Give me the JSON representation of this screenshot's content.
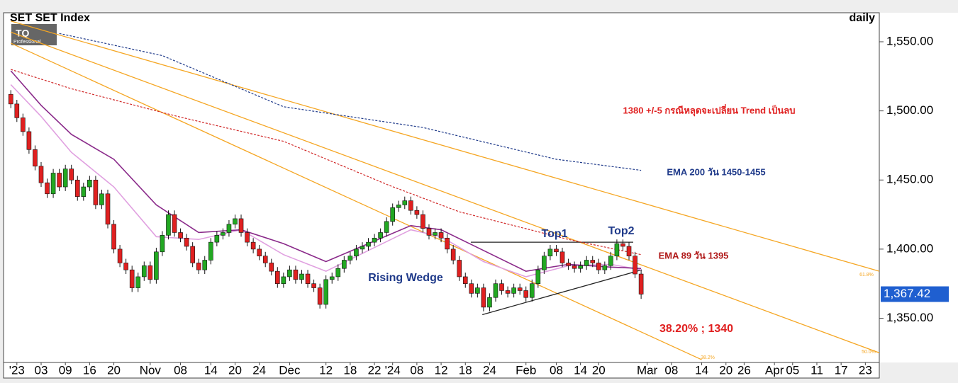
{
  "chart_data": {
    "type": "candlestick",
    "title": "SET  SET Index",
    "period": "daily",
    "logo": "TQ",
    "logo_sub": "Professional",
    "up_color": "#22a822",
    "down_color": "#e02020",
    "ohlc": [
      [
        1512,
        1515,
        1502,
        1505
      ],
      [
        1505,
        1508,
        1492,
        1495
      ],
      [
        1495,
        1498,
        1482,
        1485
      ],
      [
        1485,
        1488,
        1469,
        1472
      ],
      [
        1472,
        1475,
        1457,
        1460
      ],
      [
        1460,
        1463,
        1445,
        1448
      ],
      [
        1448,
        1451,
        1437,
        1440
      ],
      [
        1440,
        1458,
        1437,
        1455
      ],
      [
        1455,
        1458,
        1442,
        1445
      ],
      [
        1445,
        1461,
        1442,
        1458
      ],
      [
        1458,
        1461,
        1447,
        1450
      ],
      [
        1450,
        1453,
        1435,
        1438
      ],
      [
        1438,
        1448,
        1435,
        1445
      ],
      [
        1445,
        1453,
        1442,
        1450
      ],
      [
        1450,
        1453,
        1429,
        1432
      ],
      [
        1432,
        1443,
        1429,
        1440
      ],
      [
        1440,
        1443,
        1415,
        1418
      ],
      [
        1418,
        1421,
        1397,
        1400
      ],
      [
        1400,
        1403,
        1387,
        1390
      ],
      [
        1390,
        1393,
        1382,
        1385
      ],
      [
        1385,
        1388,
        1369,
        1372
      ],
      [
        1372,
        1383,
        1369,
        1380
      ],
      [
        1380,
        1391,
        1377,
        1388
      ],
      [
        1388,
        1391,
        1375,
        1378
      ],
      [
        1378,
        1401,
        1375,
        1398
      ],
      [
        1398,
        1413,
        1395,
        1410
      ],
      [
        1410,
        1428,
        1407,
        1425
      ],
      [
        1425,
        1428,
        1409,
        1412
      ],
      [
        1412,
        1415,
        1405,
        1408
      ],
      [
        1408,
        1411,
        1399,
        1402
      ],
      [
        1402,
        1405,
        1387,
        1390
      ],
      [
        1390,
        1393,
        1382,
        1385
      ],
      [
        1385,
        1395,
        1382,
        1392
      ],
      [
        1392,
        1408,
        1389,
        1405
      ],
      [
        1405,
        1413,
        1402,
        1410
      ],
      [
        1410,
        1415,
        1407,
        1412
      ],
      [
        1412,
        1421,
        1409,
        1418
      ],
      [
        1418,
        1425,
        1415,
        1422
      ],
      [
        1422,
        1425,
        1409,
        1412
      ],
      [
        1412,
        1415,
        1402,
        1405
      ],
      [
        1405,
        1408,
        1397,
        1400
      ],
      [
        1400,
        1403,
        1392,
        1395
      ],
      [
        1395,
        1398,
        1387,
        1390
      ],
      [
        1390,
        1393,
        1381,
        1384
      ],
      [
        1384,
        1387,
        1372,
        1375
      ],
      [
        1375,
        1383,
        1372,
        1380
      ],
      [
        1380,
        1388,
        1377,
        1385
      ],
      [
        1385,
        1388,
        1375,
        1378
      ],
      [
        1378,
        1385,
        1375,
        1382
      ],
      [
        1382,
        1385,
        1372,
        1375
      ],
      [
        1375,
        1378,
        1369,
        1372
      ],
      [
        1372,
        1375,
        1357,
        1360
      ],
      [
        1360,
        1381,
        1357,
        1378
      ],
      [
        1378,
        1383,
        1375,
        1380
      ],
      [
        1380,
        1389,
        1377,
        1386
      ],
      [
        1386,
        1395,
        1383,
        1392
      ],
      [
        1392,
        1398,
        1389,
        1395
      ],
      [
        1395,
        1403,
        1392,
        1400
      ],
      [
        1400,
        1405,
        1397,
        1402
      ],
      [
        1402,
        1408,
        1399,
        1405
      ],
      [
        1405,
        1411,
        1402,
        1408
      ],
      [
        1408,
        1415,
        1405,
        1412
      ],
      [
        1412,
        1423,
        1409,
        1420
      ],
      [
        1420,
        1433,
        1417,
        1430
      ],
      [
        1430,
        1435,
        1427,
        1432
      ],
      [
        1432,
        1438,
        1429,
        1435
      ],
      [
        1435,
        1438,
        1425,
        1428
      ],
      [
        1428,
        1431,
        1422,
        1425
      ],
      [
        1425,
        1428,
        1412,
        1415
      ],
      [
        1415,
        1418,
        1407,
        1410
      ],
      [
        1410,
        1415,
        1407,
        1412
      ],
      [
        1412,
        1415,
        1405,
        1408
      ],
      [
        1408,
        1411,
        1397,
        1400
      ],
      [
        1400,
        1403,
        1389,
        1392
      ],
      [
        1392,
        1395,
        1377,
        1380
      ],
      [
        1380,
        1383,
        1372,
        1375
      ],
      [
        1375,
        1378,
        1365,
        1368
      ],
      [
        1368,
        1375,
        1365,
        1372
      ],
      [
        1372,
        1375,
        1355,
        1358
      ],
      [
        1358,
        1368,
        1355,
        1365
      ],
      [
        1365,
        1378,
        1362,
        1375
      ],
      [
        1375,
        1378,
        1367,
        1370
      ],
      [
        1370,
        1373,
        1365,
        1368
      ],
      [
        1368,
        1375,
        1365,
        1372
      ],
      [
        1372,
        1375,
        1367,
        1370
      ],
      [
        1370,
        1373,
        1362,
        1365
      ],
      [
        1365,
        1378,
        1362,
        1375
      ],
      [
        1375,
        1388,
        1372,
        1385
      ],
      [
        1385,
        1398,
        1382,
        1395
      ],
      [
        1395,
        1403,
        1392,
        1400
      ],
      [
        1400,
        1403,
        1395,
        1398
      ],
      [
        1398,
        1401,
        1387,
        1390
      ],
      [
        1390,
        1393,
        1385,
        1388
      ],
      [
        1388,
        1391,
        1383,
        1386
      ],
      [
        1386,
        1391,
        1383,
        1388
      ],
      [
        1388,
        1395,
        1385,
        1392
      ],
      [
        1392,
        1395,
        1387,
        1390
      ],
      [
        1390,
        1393,
        1382,
        1385
      ],
      [
        1385,
        1391,
        1382,
        1388
      ],
      [
        1388,
        1398,
        1385,
        1395
      ],
      [
        1395,
        1407,
        1392,
        1404
      ],
      [
        1404,
        1407,
        1399,
        1402
      ],
      [
        1402,
        1405,
        1392,
        1395
      ],
      [
        1395,
        1398,
        1379,
        1382
      ],
      [
        1382,
        1385,
        1364,
        1367.42
      ]
    ],
    "series": [
      {
        "color": "#1f3a8a",
        "dash": true,
        "x": [
          8,
          25,
          45,
          68,
          90,
          104
        ],
        "values": [
          1556,
          1540,
          1503,
          1488,
          1465,
          1457
        ]
      },
      {
        "color": "#d02828",
        "dash": true,
        "x": [
          0,
          10,
          27.5,
          45,
          62.5,
          74,
          92,
          104
        ],
        "values": [
          1530,
          1516,
          1496,
          1478,
          1446,
          1427,
          1407,
          1396
        ]
      },
      {
        "color": "#e0a0e0",
        "dash": false,
        "x": [
          0,
          5,
          10,
          17,
          24,
          31,
          38,
          45,
          52,
          59,
          66,
          71,
          78,
          85,
          92,
          99,
          104
        ],
        "values": [
          1519,
          1496,
          1470,
          1445,
          1409,
          1407,
          1414,
          1396,
          1384,
          1399,
          1414,
          1409,
          1391,
          1380,
          1388,
          1389,
          1385
        ]
      },
      {
        "color": "#8a2a8a",
        "dash": false,
        "x": [
          0,
          5,
          10,
          17,
          24,
          31,
          38,
          45,
          52,
          59,
          66,
          71,
          78,
          85,
          92,
          99,
          104
        ],
        "values": [
          1529,
          1504,
          1483,
          1465,
          1432,
          1412,
          1414,
          1404,
          1391,
          1404,
          1417,
          1414,
          1399,
          1384,
          1389,
          1387,
          1386
        ]
      }
    ],
    "trendlines": [
      {
        "color": "#f5a623",
        "x": [
          0,
          143.3
        ],
        "values": [
          1565,
          1384
        ]
      },
      {
        "color": "#f5a623",
        "x": [
          0,
          143.3
        ],
        "values": [
          1557,
          1325
        ]
      },
      {
        "color": "#f5a623",
        "x": [
          0,
          114
        ],
        "values": [
          1549,
          1320
        ]
      },
      {
        "color": "#222222",
        "x": [
          75.9,
          102.7
        ],
        "values": [
          1405,
          1405
        ]
      },
      {
        "color": "#222222",
        "x": [
          77.8,
          104.1
        ],
        "values": [
          1352.6,
          1385
        ]
      }
    ],
    "annotations": [
      "1380 +/-5 กรณีหลุดจะเปลี่ยน Trend เป็นลบ",
      "EMA 200 วัน 1450-1455",
      "Top1",
      "Top2",
      "EMA 89 วัน 1395",
      "Rising Wedge",
      "38.20% ; 1340"
    ],
    "fib_labels": [
      "61.8%",
      "50.0%",
      "38.2%"
    ],
    "last": 1367.42,
    "last_label": "1,367.42",
    "xlim": [
      -1.2,
      143.3
    ],
    "xticks": [
      {
        "value": 1,
        "label": "'23"
      },
      {
        "value": 5,
        "label": "03"
      },
      {
        "value": 9,
        "label": "09"
      },
      {
        "value": 13,
        "label": "16"
      },
      {
        "value": 17,
        "label": "20"
      },
      {
        "value": 23,
        "label": "Nov"
      },
      {
        "value": 28,
        "label": "08"
      },
      {
        "value": 33,
        "label": "14"
      },
      {
        "value": 37,
        "label": "20"
      },
      {
        "value": 41,
        "label": "24"
      },
      {
        "value": 46,
        "label": "Dec"
      },
      {
        "value": 52,
        "label": "12"
      },
      {
        "value": 56,
        "label": "18"
      },
      {
        "value": 60,
        "label": "22"
      },
      {
        "value": 63,
        "label": "'24"
      },
      {
        "value": 67,
        "label": "08"
      },
      {
        "value": 71,
        "label": "12"
      },
      {
        "value": 75,
        "label": "18"
      },
      {
        "value": 79,
        "label": "24"
      },
      {
        "value": 85,
        "label": "Feb"
      },
      {
        "value": 90,
        "label": "08"
      },
      {
        "value": 94,
        "label": "14"
      },
      {
        "value": 97,
        "label": "20"
      },
      {
        "value": 105,
        "label": "Mar"
      },
      {
        "value": 109,
        "label": "08"
      },
      {
        "value": 114,
        "label": "14"
      },
      {
        "value": 118,
        "label": "20"
      },
      {
        "value": 121,
        "label": "26"
      },
      {
        "value": 126,
        "label": "Apr"
      },
      {
        "value": 129,
        "label": "05"
      },
      {
        "value": 133,
        "label": "11"
      },
      {
        "value": 137,
        "label": "17"
      },
      {
        "value": 141,
        "label": "23"
      }
    ],
    "ylim": [
      1318,
      1571
    ],
    "yticks": [
      {
        "value": 1350,
        "label": "1,350.00"
      },
      {
        "value": 1400,
        "label": "1,400.00"
      },
      {
        "value": 1450,
        "label": "1,450.00"
      },
      {
        "value": 1500,
        "label": "1,500.00"
      },
      {
        "value": 1550,
        "label": "1,550.00"
      }
    ]
  }
}
